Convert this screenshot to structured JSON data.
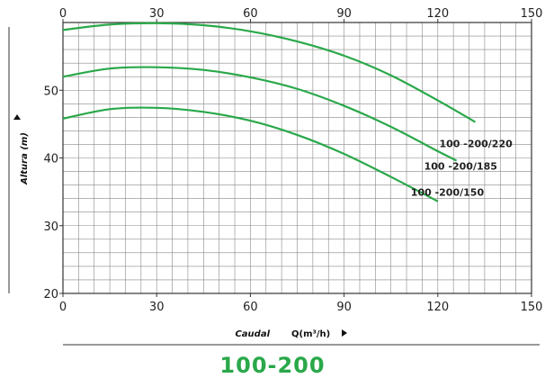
{
  "model_title": "100-200",
  "chart_data": {
    "type": "line",
    "xlabel": "Caudal",
    "xunit": "Q(m³/h)",
    "ylabel": "Altura (m)",
    "xlim": [
      0,
      150
    ],
    "ylim": [
      20,
      60
    ],
    "xticks": [
      "0",
      "30",
      "60",
      "90",
      "120",
      "150"
    ],
    "yticks": [
      "20",
      "30",
      "40",
      "50"
    ],
    "grid": true,
    "colors": {
      "curve": "#2aa84a",
      "grid": "#888888",
      "axis": "#333333"
    },
    "series": [
      {
        "name": "100 -200/220",
        "x": [
          0,
          15,
          30,
          45,
          60,
          75,
          90,
          105,
          120,
          132
        ],
        "y": [
          58.9,
          59.7,
          59.9,
          59.6,
          58.7,
          57.2,
          55.1,
          52.2,
          48.5,
          45.3
        ]
      },
      {
        "name": "100 -200/185",
        "x": [
          0,
          15,
          30,
          45,
          60,
          75,
          90,
          105,
          120,
          126
        ],
        "y": [
          52.0,
          53.2,
          53.4,
          53.0,
          51.9,
          50.2,
          47.7,
          44.6,
          41.0,
          39.6
        ]
      },
      {
        "name": "100 -200/150",
        "x": [
          0,
          15,
          30,
          45,
          60,
          75,
          90,
          105,
          120
        ],
        "y": [
          45.8,
          47.2,
          47.4,
          46.8,
          45.5,
          43.4,
          40.6,
          37.2,
          33.6
        ]
      }
    ]
  }
}
